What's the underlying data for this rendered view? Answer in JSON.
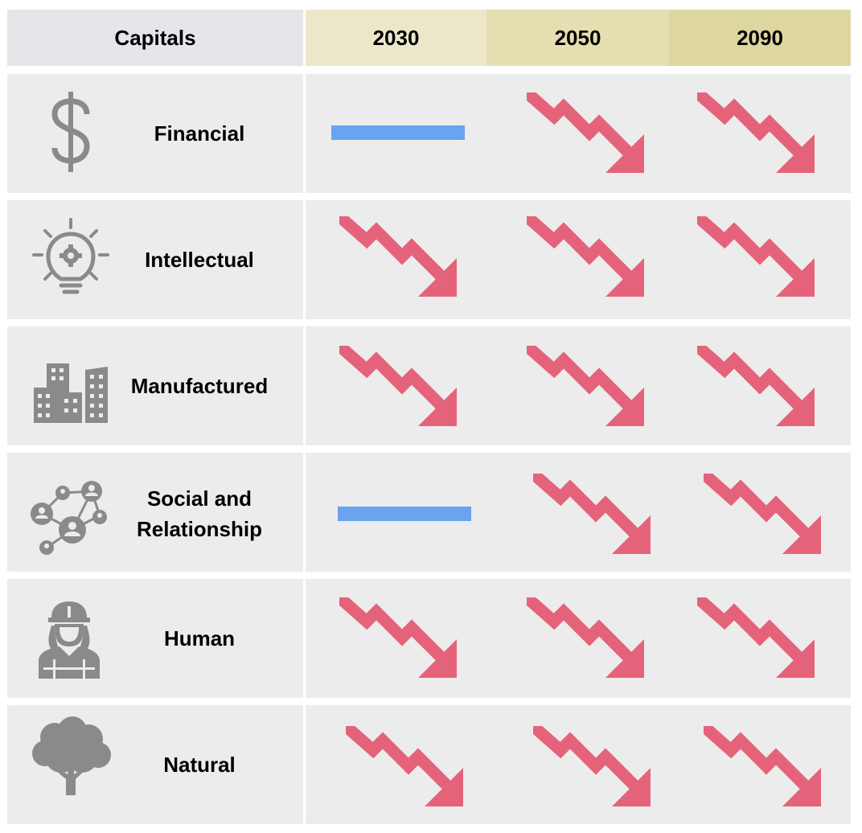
{
  "header": {
    "capitals": "Capitals",
    "years": [
      "2030",
      "2050",
      "2090"
    ]
  },
  "colors": {
    "header_capitals": "#e6e5ea",
    "header_2030": "#ece7c9",
    "header_2050": "#e4deb1",
    "header_2090": "#ddd69f",
    "cell_bg": "#ececec",
    "icon_gray": "#8a8a8a",
    "decline_arrow": "#e5637a",
    "stable_line": "#6aa3ef"
  },
  "rows": [
    {
      "label": "Financial",
      "icon": "dollar-icon",
      "trend": [
        "stable",
        "decline",
        "decline"
      ]
    },
    {
      "label": "Intellectual",
      "icon": "lightbulb-gear-icon",
      "trend": [
        "decline",
        "decline",
        "decline"
      ]
    },
    {
      "label": "Manufactured",
      "icon": "buildings-icon",
      "trend": [
        "decline",
        "decline",
        "decline"
      ]
    },
    {
      "label": "Social and Relationship",
      "icon": "network-people-icon",
      "trend": [
        "stable",
        "decline",
        "decline"
      ]
    },
    {
      "label": "Human",
      "icon": "worker-icon",
      "trend": [
        "decline",
        "decline",
        "decline"
      ]
    },
    {
      "label": "Natural",
      "icon": "tree-icon",
      "trend": [
        "decline",
        "decline",
        "decline"
      ]
    }
  ]
}
